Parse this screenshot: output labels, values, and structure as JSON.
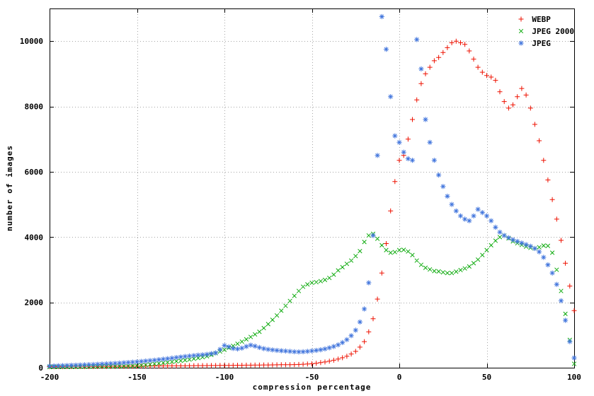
{
  "chart_data": {
    "type": "scatter",
    "title": "",
    "xlabel": "compression percentage",
    "ylabel": "number of images",
    "xlim": [
      -200,
      100
    ],
    "ylim": [
      0,
      11000
    ],
    "xticks": [
      -200,
      -150,
      -100,
      -50,
      0,
      50,
      100
    ],
    "yticks": [
      0,
      2000,
      4000,
      6000,
      8000,
      10000
    ],
    "grid": true,
    "grid_style": "dotted",
    "legend_position": "top-right",
    "background": "#ffffff",
    "axis_color": "#000000",
    "grid_color": "#a6a6a6",
    "x": {
      "start": -200,
      "step": 2.5,
      "count": 121
    },
    "series": [
      {
        "name": "WEBP",
        "marker": "plus",
        "color": "#ee1100",
        "values": [
          30,
          30,
          32,
          32,
          34,
          34,
          36,
          36,
          38,
          38,
          40,
          40,
          42,
          42,
          44,
          44,
          46,
          46,
          48,
          48,
          50,
          51,
          52,
          53,
          54,
          55,
          56,
          57,
          58,
          59,
          60,
          61,
          62,
          63,
          64,
          65,
          66,
          67,
          68,
          69,
          70,
          72,
          73,
          75,
          76,
          78,
          79,
          81,
          82,
          84,
          85,
          87,
          88,
          90,
          91,
          93,
          95,
          100,
          106,
          113,
          120,
          135,
          155,
          175,
          200,
          230,
          265,
          305,
          350,
          420,
          500,
          630,
          800,
          1100,
          1500,
          2100,
          2900,
          3800,
          4800,
          5700,
          6350,
          6500,
          7000,
          7600,
          8200,
          8700,
          9000,
          9200,
          9400,
          9500,
          9650,
          9800,
          9950,
          10000,
          9950,
          9900,
          9700,
          9450,
          9200,
          9050,
          8950,
          8900,
          8800,
          8450,
          8150,
          7950,
          8050,
          8300,
          8550,
          8350,
          7950,
          7450,
          6950,
          6350,
          5750,
          5150,
          4550,
          3900,
          3200,
          2500,
          1750
        ]
      },
      {
        "name": "JPEG 2000",
        "marker": "cross",
        "color": "#0caa0c",
        "values": [
          20,
          21,
          22,
          24,
          25,
          27,
          28,
          30,
          31,
          33,
          35,
          37,
          39,
          42,
          44,
          47,
          49,
          52,
          54,
          57,
          60,
          72,
          85,
          100,
          120,
          135,
          150,
          165,
          180,
          196,
          213,
          231,
          250,
          273,
          297,
          323,
          350,
          395,
          443,
          495,
          550,
          608,
          668,
          733,
          800,
          870,
          943,
          1020,
          1100,
          1215,
          1335,
          1465,
          1600,
          1745,
          1895,
          2045,
          2200,
          2350,
          2480,
          2550,
          2600,
          2620,
          2650,
          2690,
          2750,
          2850,
          2980,
          3080,
          3180,
          3280,
          3420,
          3570,
          3850,
          4050,
          4100,
          3950,
          3750,
          3600,
          3520,
          3540,
          3600,
          3610,
          3560,
          3450,
          3280,
          3150,
          3060,
          3010,
          2960,
          2950,
          2920,
          2900,
          2900,
          2940,
          2990,
          3040,
          3100,
          3200,
          3310,
          3450,
          3600,
          3750,
          3890,
          4000,
          4050,
          3960,
          3870,
          3810,
          3760,
          3710,
          3670,
          3650,
          3690,
          3740,
          3730,
          3520,
          3000,
          2350,
          1650,
          850,
          120
        ]
      },
      {
        "name": "JPEG",
        "marker": "asterisk",
        "color": "#4477dd",
        "values": [
          50,
          55,
          60,
          65,
          70,
          75,
          80,
          85,
          90,
          95,
          100,
          107,
          114,
          121,
          128,
          135,
          143,
          152,
          161,
          170,
          180,
          192,
          205,
          218,
          232,
          247,
          262,
          278,
          295,
          312,
          330,
          345,
          360,
          372,
          385,
          397,
          410,
          430,
          455,
          560,
          680,
          640,
          590,
          575,
          600,
          650,
          690,
          660,
          620,
          585,
          560,
          545,
          530,
          520,
          510,
          500,
          490,
          485,
          490,
          500,
          515,
          530,
          550,
          575,
          610,
          650,
          700,
          770,
          860,
          980,
          1150,
          1400,
          1800,
          2600,
          4050,
          6500,
          10750,
          9750,
          8300,
          7100,
          6900,
          6600,
          6400,
          6350,
          10050,
          9150,
          7600,
          6900,
          6350,
          5900,
          5550,
          5250,
          5000,
          4800,
          4650,
          4550,
          4500,
          4650,
          4850,
          4750,
          4650,
          4500,
          4300,
          4150,
          4050,
          3980,
          3920,
          3870,
          3820,
          3770,
          3720,
          3650,
          3550,
          3380,
          3150,
          2900,
          2550,
          2050,
          1450,
          800,
          300
        ]
      }
    ]
  }
}
